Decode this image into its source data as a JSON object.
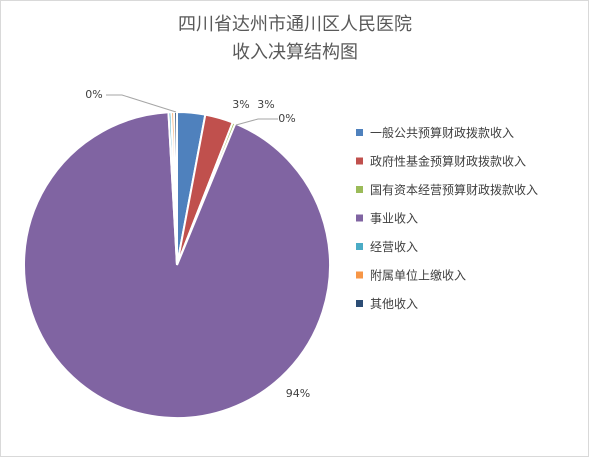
{
  "chart_data": {
    "type": "pie",
    "title_lines": [
      "四川省达州市通川区人民医院",
      "收入决算结构图"
    ],
    "categories": [
      "一般公共预算财政拨款收入",
      "政府性基金预算财政拨款收入",
      "国有资本经营预算财政拨款收入",
      "事业收入",
      "经营收入",
      "附属单位上缴收入",
      "其他收入"
    ],
    "values": [
      3,
      3,
      0,
      94,
      0,
      0,
      0
    ],
    "data_labels": [
      "3%",
      "3%",
      "0%",
      "94%",
      "",
      "",
      "0%"
    ],
    "colors": [
      "#4f81bd",
      "#c0504d",
      "#9bbb59",
      "#8064a2",
      "#4bacc6",
      "#f79646",
      "#2c4d75"
    ],
    "legend_position": "right"
  }
}
